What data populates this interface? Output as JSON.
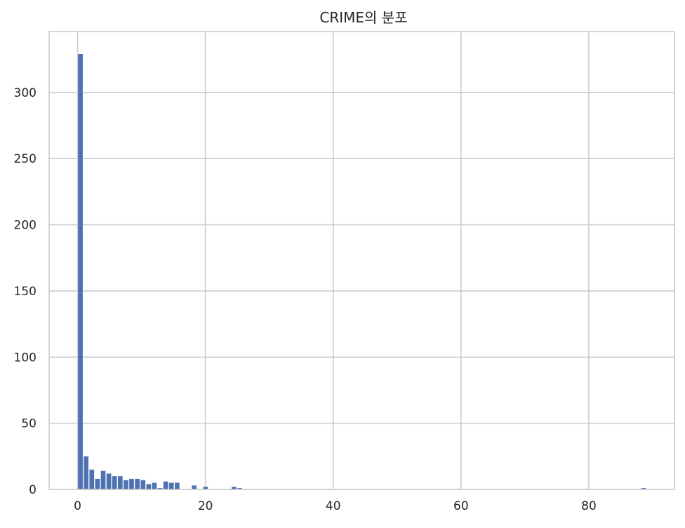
{
  "chart_data": {
    "type": "bar",
    "title": "CRIME의 분포",
    "xlabel": "",
    "ylabel": "",
    "xlim": [
      -4.45,
      93.4
    ],
    "ylim": [
      0,
      346
    ],
    "x_ticks": [
      0,
      20,
      40,
      60,
      80
    ],
    "y_ticks": [
      0,
      50,
      100,
      150,
      200,
      250,
      300
    ],
    "grid": true,
    "bar_color": "#4c72b0",
    "bin_start": 0,
    "bin_width": 0.89,
    "values": [
      329,
      25,
      15,
      8,
      14,
      12,
      10,
      10,
      7,
      8,
      8,
      7,
      4,
      5,
      1,
      6,
      5,
      5,
      0,
      0,
      3,
      0,
      2,
      0,
      0,
      0,
      0,
      2,
      1,
      0,
      0,
      0,
      0,
      0,
      0,
      0,
      0,
      0,
      0,
      0,
      0,
      0,
      0,
      0,
      0,
      0,
      0,
      0,
      0,
      0,
      0,
      0,
      0,
      0,
      0,
      0,
      0,
      0,
      0,
      0,
      0,
      0,
      0,
      0,
      0,
      0,
      0,
      0,
      0,
      0,
      0,
      0,
      0,
      0,
      0,
      0,
      0,
      0,
      0,
      0,
      0,
      0,
      0,
      0,
      0,
      0,
      0,
      0,
      0,
      0,
      0,
      0,
      0,
      0,
      0,
      0,
      0,
      0,
      0,
      1
    ]
  }
}
